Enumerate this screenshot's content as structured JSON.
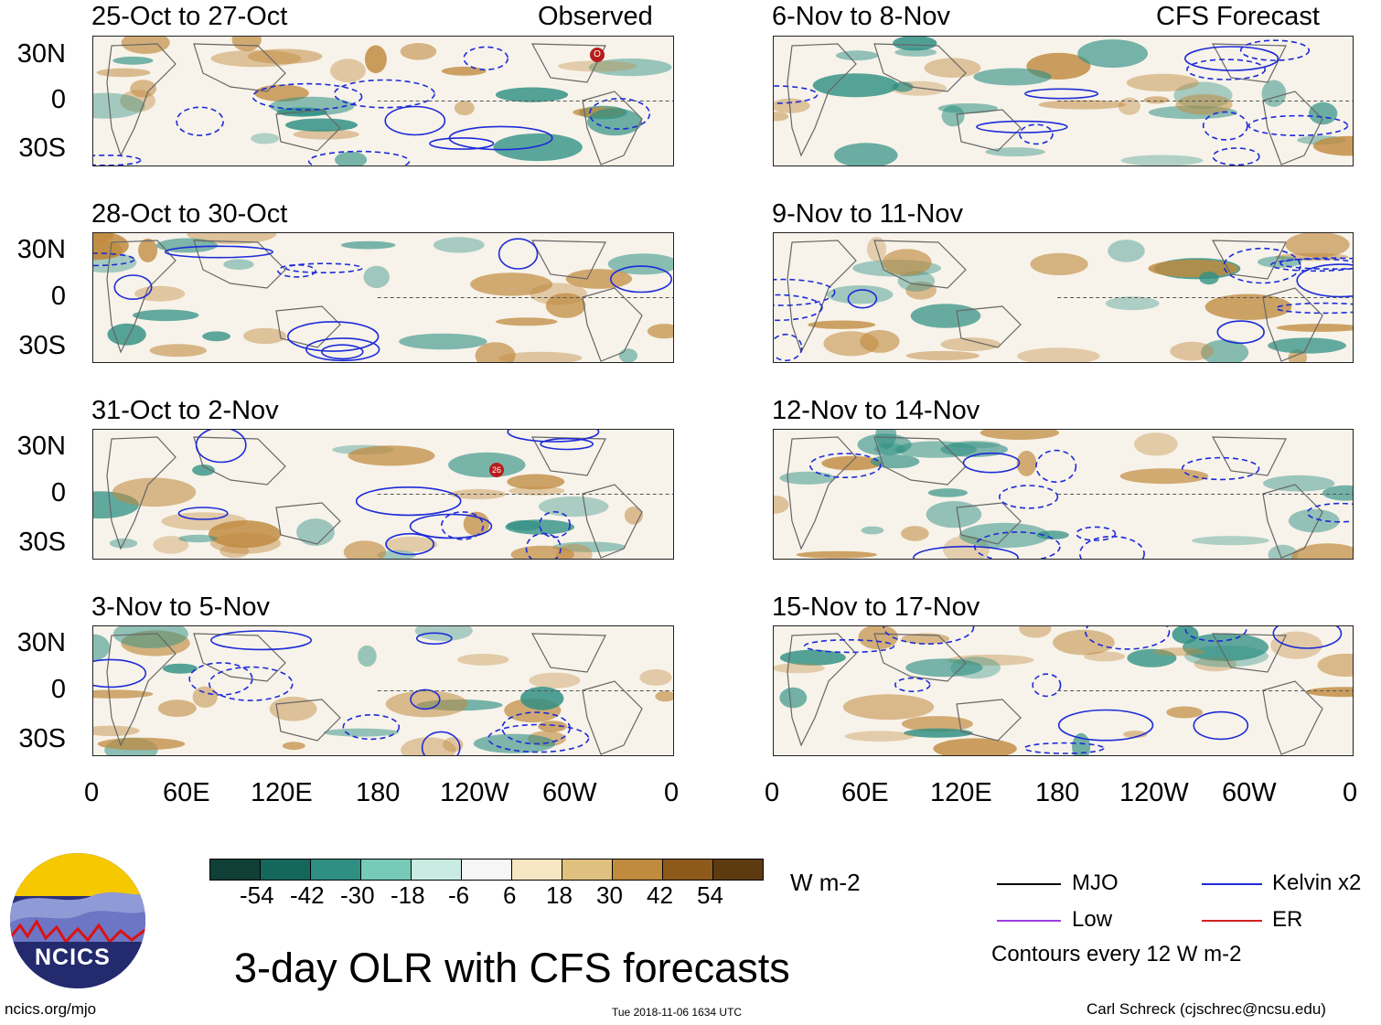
{
  "panels": [
    {
      "title": "25-Oct to 27-Oct",
      "tag": "Observed"
    },
    {
      "title": "6-Nov to 8-Nov",
      "tag": "CFS Forecast"
    },
    {
      "title": "28-Oct to 30-Oct",
      "tag": ""
    },
    {
      "title": "9-Nov to 11-Nov",
      "tag": ""
    },
    {
      "title": "31-Oct to 2-Nov",
      "tag": ""
    },
    {
      "title": "12-Nov to 14-Nov",
      "tag": ""
    },
    {
      "title": "3-Nov to 5-Nov",
      "tag": ""
    },
    {
      "title": "15-Nov to 17-Nov",
      "tag": ""
    }
  ],
  "lat_labels": [
    "30N",
    "0",
    "30S"
  ],
  "lon_labels": [
    "0",
    "60E",
    "120E",
    "180",
    "120W",
    "60W",
    "0"
  ],
  "colorbar": {
    "ticks": [
      "-54",
      "-42",
      "-30",
      "-18",
      "-6",
      "6",
      "18",
      "30",
      "42",
      "54"
    ],
    "colors": [
      "#0f3f36",
      "#15675c",
      "#2f8f83",
      "#77c9b8",
      "#c9ebe2",
      "#f6f6f6",
      "#f6e6c1",
      "#e0c07f",
      "#c08a3f",
      "#8d5a1c",
      "#5e3a10"
    ],
    "units": "W m-2"
  },
  "legend": {
    "items": [
      {
        "label": "MJO",
        "color": "#000000"
      },
      {
        "label": "Kelvin x2",
        "color": "#1d2bd8"
      },
      {
        "label": "Low",
        "color": "#9b3ee0"
      },
      {
        "label": "ER",
        "color": "#d32020"
      }
    ],
    "note": "Contours every 12 W m-2"
  },
  "logo_text": "NCICS",
  "main_title": "3-day OLR with CFS forecasts",
  "footer": {
    "left": "ncics.org/mjo",
    "center": "Tue 2018-11-06 1634 UTC",
    "right": "Carl Schreck (cjschrec@ncsu.edu)"
  },
  "storm_markers": [
    "O",
    "26"
  ],
  "fill_colors": {
    "wet": "#2f8f83",
    "dry": "#c08a3f",
    "contour": "#1d2bd8",
    "land": "#666666"
  }
}
